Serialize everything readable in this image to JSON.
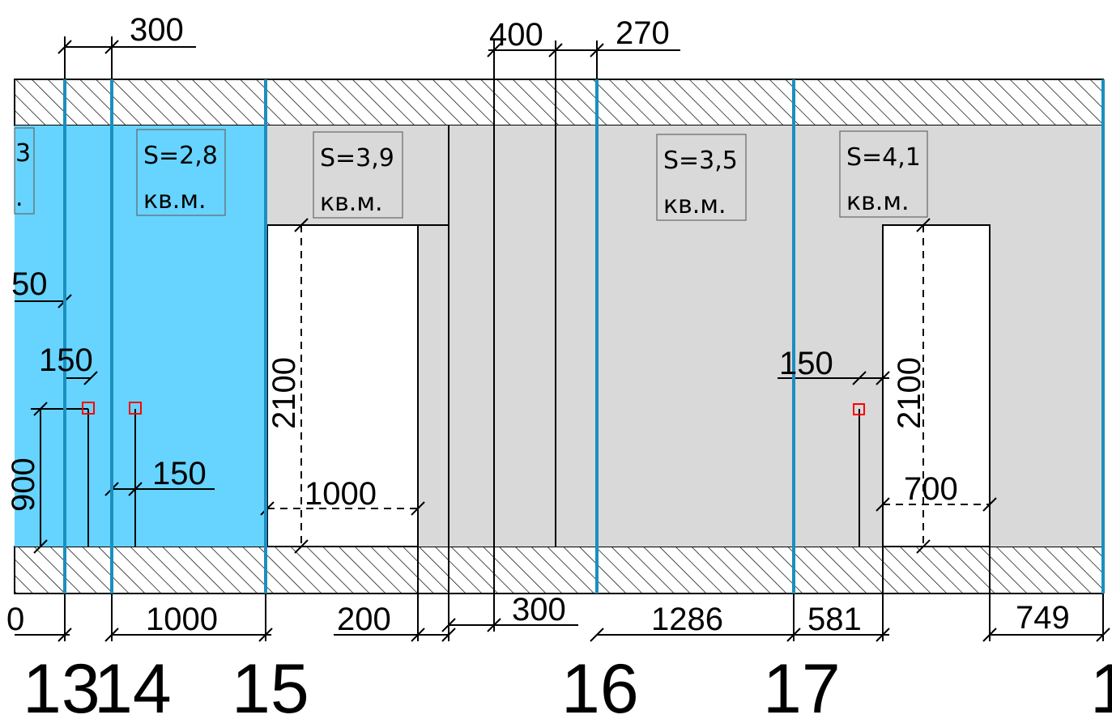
{
  "drawing": {
    "top_dimensions": [
      "300",
      "400",
      "270"
    ],
    "room_labels": [
      {
        "id": "partial",
        "area": "3",
        "unit": "."
      },
      {
        "id": "s28",
        "area": "S=2,8",
        "unit": "кв.м."
      },
      {
        "id": "s39",
        "area": "S=3,9",
        "unit": "кв.м."
      },
      {
        "id": "s35",
        "area": "S=3,5",
        "unit": "кв.м."
      },
      {
        "id": "s41",
        "area": "S=4,1",
        "unit": "кв.м."
      }
    ],
    "inner_dimensions": {
      "left_partial_50": "50",
      "left_150": "150",
      "left_900": "900",
      "mid_150": "150",
      "door1_height": "2100",
      "door1_width": "1000",
      "right_150": "150",
      "door2_height": "2100",
      "door2_width": "700"
    },
    "bottom_dimensions": [
      "0",
      "1000",
      "200",
      "300",
      "1286",
      "581",
      "749"
    ],
    "axis_labels": [
      "13",
      "14",
      "15",
      "16",
      "17",
      "1"
    ],
    "colors": {
      "wall_fill": "#ffffff",
      "hatch": "#000000",
      "room_fill": "#d9d9d9",
      "highlight_fill": "#66d4ff",
      "axis_line": "#1a8fbf",
      "marker": "#ff0000"
    }
  }
}
